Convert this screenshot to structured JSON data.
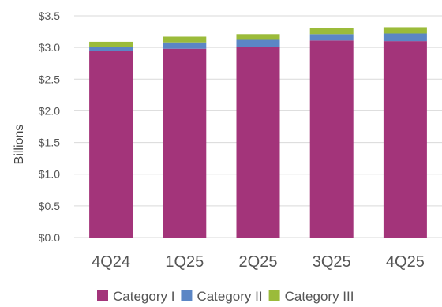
{
  "chart_data": {
    "type": "bar",
    "stacked": true,
    "title": "",
    "xlabel": "",
    "ylabel": "Billions",
    "categories": [
      "4Q24",
      "1Q25",
      "2Q25",
      "3Q25",
      "4Q25"
    ],
    "series": [
      {
        "name": "Category I",
        "color": "#a3347a",
        "values": [
          2.95,
          2.98,
          3.01,
          3.11,
          3.1
        ]
      },
      {
        "name": "Category II",
        "color": "#5b86c5",
        "values": [
          0.06,
          0.1,
          0.11,
          0.1,
          0.12
        ]
      },
      {
        "name": "Category III",
        "color": "#9bbb3a",
        "values": [
          0.08,
          0.09,
          0.09,
          0.1,
          0.1
        ]
      }
    ],
    "ylim": [
      0,
      3.5
    ],
    "yticks": [
      0,
      0.5,
      1.0,
      1.5,
      2.0,
      2.5,
      3.0,
      3.5
    ],
    "ytick_labels": [
      "$0.0",
      "$0.5",
      "$1.0",
      "$1.5",
      "$2.0",
      "$2.5",
      "$3.0",
      "$3.5"
    ],
    "grid": "horizontal",
    "legend": "bottom-right"
  }
}
